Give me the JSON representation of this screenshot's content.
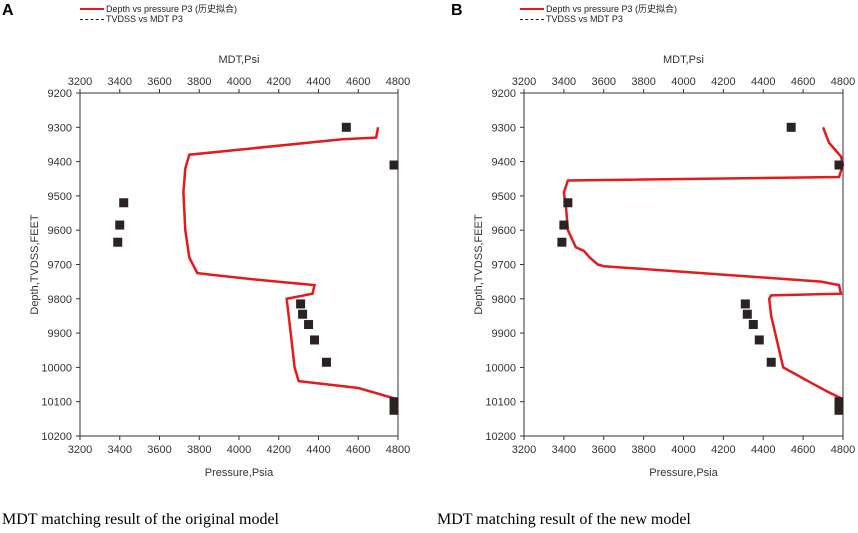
{
  "figure": {
    "panels": [
      {
        "letter": "A",
        "caption": "MDT matching result of the original model",
        "legend": [
          {
            "label": "Depth vs pressure P3 (历史拟合)",
            "style": "red-solid"
          },
          {
            "label": "TVDSS vs MDT P3",
            "style": "black-dashed"
          }
        ]
      },
      {
        "letter": "B",
        "caption": "MDT matching result of the new model",
        "legend": [
          {
            "label": "Depth vs pressure P3 (历史拟合)",
            "style": "red-solid"
          },
          {
            "label": "TVDSS vs MDT P3",
            "style": "black-dashed"
          }
        ]
      }
    ]
  },
  "colors": {
    "line": "#e41a1c",
    "marker": "#2b2222",
    "axis": "#333333"
  },
  "chart_data": [
    {
      "type": "line",
      "panel": "A",
      "title": "MDT,Psi",
      "xlabel": "Pressure,Psia",
      "ylabel": "Depth,TVDSS,FEET",
      "xlim": [
        3200,
        4800
      ],
      "ylim": [
        9200,
        10200
      ],
      "y_inverted": true,
      "xticks": [
        3200,
        3400,
        3600,
        3800,
        4000,
        4200,
        4400,
        4600,
        4800
      ],
      "yticks": [
        9200,
        9300,
        9400,
        9500,
        9600,
        9700,
        9800,
        9900,
        10000,
        10100,
        10200
      ],
      "series": [
        {
          "name": "Depth vs pressure P3 (历史拟合)",
          "kind": "line",
          "points": [
            [
              4700,
              9300
            ],
            [
              4690,
              9330
            ],
            [
              4520,
              9335
            ],
            [
              3750,
              9380
            ],
            [
              3730,
              9420
            ],
            [
              3720,
              9490
            ],
            [
              3730,
              9600
            ],
            [
              3750,
              9680
            ],
            [
              3790,
              9725
            ],
            [
              3860,
              9730
            ],
            [
              4100,
              9745
            ],
            [
              4380,
              9760
            ],
            [
              4370,
              9785
            ],
            [
              4240,
              9800
            ],
            [
              4260,
              9900
            ],
            [
              4280,
              10000
            ],
            [
              4300,
              10040
            ],
            [
              4600,
              10060
            ],
            [
              4780,
              10090
            ],
            [
              4790,
              10100
            ]
          ]
        },
        {
          "name": "TVDSS vs MDT P3",
          "kind": "scatter",
          "points": [
            [
              4540,
              9300
            ],
            [
              4780,
              9410
            ],
            [
              3420,
              9520
            ],
            [
              3400,
              9585
            ],
            [
              3390,
              9635
            ],
            [
              4310,
              9815
            ],
            [
              4320,
              9845
            ],
            [
              4350,
              9875
            ],
            [
              4380,
              9920
            ],
            [
              4440,
              9985
            ],
            [
              4780,
              10100
            ],
            [
              4780,
              10125
            ]
          ]
        }
      ]
    },
    {
      "type": "line",
      "panel": "B",
      "title": "MDT,Psi",
      "xlabel": "Pressure,Psia",
      "ylabel": "Depth,TVDSS,FEET",
      "xlim": [
        3200,
        4800
      ],
      "ylim": [
        9200,
        10200
      ],
      "y_inverted": true,
      "xticks": [
        3200,
        3400,
        3600,
        3800,
        4000,
        4200,
        4400,
        4600,
        4800
      ],
      "yticks": [
        9200,
        9300,
        9400,
        9500,
        9600,
        9700,
        9800,
        9900,
        10000,
        10100,
        10200
      ],
      "series": [
        {
          "name": "Depth vs pressure P3 (历史拟合)",
          "kind": "line",
          "points": [
            [
              4700,
              9300
            ],
            [
              4730,
              9345
            ],
            [
              4790,
              9385
            ],
            [
              4800,
              9410
            ],
            [
              4780,
              9445
            ],
            [
              3420,
              9455
            ],
            [
              3400,
              9490
            ],
            [
              3410,
              9530
            ],
            [
              3420,
              9600
            ],
            [
              3460,
              9650
            ],
            [
              3500,
              9660
            ],
            [
              3530,
              9680
            ],
            [
              3550,
              9690
            ],
            [
              3570,
              9700
            ],
            [
              3600,
              9705
            ],
            [
              4690,
              9750
            ],
            [
              4780,
              9760
            ],
            [
              4790,
              9785
            ],
            [
              4440,
              9790
            ],
            [
              4430,
              9800
            ],
            [
              4440,
              9850
            ],
            [
              4460,
              9900
            ],
            [
              4480,
              9950
            ],
            [
              4500,
              10000
            ],
            [
              4640,
              10045
            ],
            [
              4720,
              10070
            ],
            [
              4790,
              10090
            ]
          ]
        },
        {
          "name": "TVDSS vs MDT P3",
          "kind": "scatter",
          "points": [
            [
              4540,
              9300
            ],
            [
              4780,
              9410
            ],
            [
              3420,
              9520
            ],
            [
              3400,
              9585
            ],
            [
              3390,
              9635
            ],
            [
              4310,
              9815
            ],
            [
              4320,
              9845
            ],
            [
              4350,
              9875
            ],
            [
              4380,
              9920
            ],
            [
              4440,
              9985
            ],
            [
              4780,
              10100
            ],
            [
              4780,
              10125
            ]
          ]
        }
      ]
    }
  ]
}
